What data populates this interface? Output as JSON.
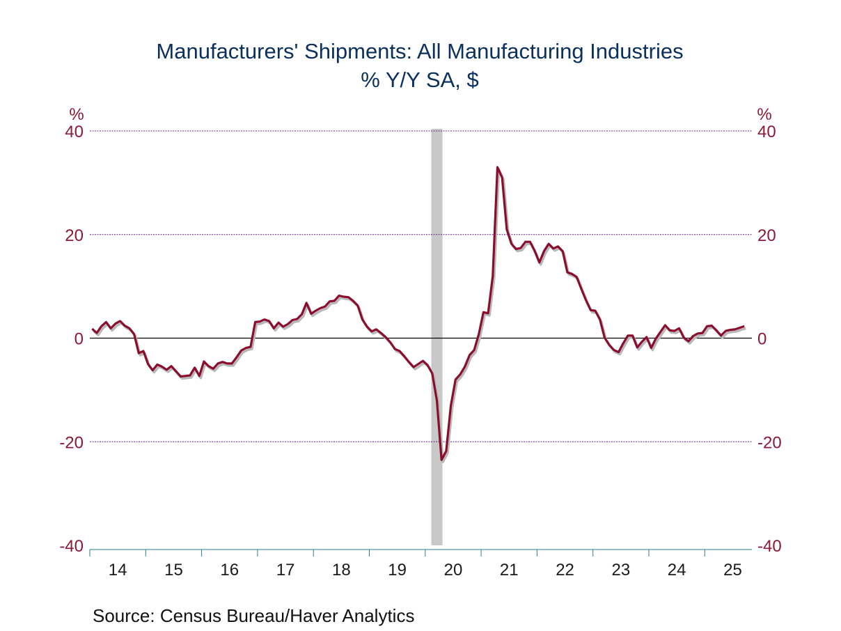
{
  "chart_data": {
    "type": "line",
    "title": "Manufacturers' Shipments: All Manufacturing Industries",
    "subtitle": "% Y/Y   SA, $",
    "ylabel_left": "%",
    "ylabel_right": "%",
    "ylim": [
      -40,
      40
    ],
    "yticks": [
      40,
      20,
      0,
      -20,
      -40
    ],
    "ytick_labels": [
      "40",
      "20",
      "0",
      "-20",
      "-40"
    ],
    "xlabel": "",
    "x_start": "2014-01",
    "x_end": "2025-09",
    "frequency": "monthly",
    "xtick_labels": [
      "14",
      "15",
      "16",
      "17",
      "18",
      "19",
      "20",
      "21",
      "22",
      "23",
      "24",
      "25"
    ],
    "grid": "horizontal dashed at ±20, ±40; solid zero line",
    "recession_shading": [
      {
        "start": "2020-02",
        "end": "2020-04"
      }
    ],
    "series": [
      {
        "name": "Manufacturers' Shipments % Y/Y",
        "color": "#8b0d2e",
        "values": [
          1.8,
          1.0,
          2.3,
          3.1,
          1.9,
          2.8,
          3.3,
          2.4,
          1.9,
          0.8,
          -2.9,
          -2.5,
          -5.0,
          -6.2,
          -5.1,
          -5.5,
          -6.1,
          -5.4,
          -6.4,
          -7.4,
          -7.3,
          -7.2,
          -5.7,
          -7.3,
          -4.5,
          -5.4,
          -5.9,
          -4.9,
          -4.6,
          -4.9,
          -4.9,
          -3.7,
          -2.4,
          -1.9,
          -1.7,
          3.1,
          3.2,
          3.6,
          3.3,
          1.9,
          3.0,
          2.2,
          2.7,
          3.5,
          3.7,
          4.6,
          6.8,
          4.7,
          5.3,
          5.8,
          6.1,
          7.1,
          7.2,
          8.2,
          8.0,
          7.9,
          7.2,
          6.3,
          3.6,
          2.2,
          1.3,
          1.7,
          1.0,
          0.2,
          -0.8,
          -2.1,
          -2.5,
          -3.5,
          -4.6,
          -5.6,
          -5.0,
          -4.4,
          -5.2,
          -6.8,
          -12.0,
          -23.5,
          -21.8,
          -13.0,
          -8.0,
          -7.0,
          -5.5,
          -3.3,
          -2.3,
          0.8,
          5.0,
          4.8,
          12.0,
          33.0,
          31.0,
          21.0,
          18.2,
          17.2,
          17.4,
          18.6,
          18.6,
          16.8,
          14.6,
          16.8,
          18.2,
          17.3,
          17.7,
          16.8,
          12.7,
          12.4,
          11.8,
          9.5,
          7.3,
          5.4,
          5.3,
          3.6,
          0.1,
          -1.3,
          -2.3,
          -2.7,
          -1.0,
          0.5,
          0.5,
          -1.8,
          -0.7,
          0.2,
          -1.9,
          -0.1,
          1.2,
          2.5,
          1.5,
          1.4,
          1.9,
          0.1,
          -0.6,
          0.4,
          0.9,
          1.0,
          2.3,
          2.4,
          1.5,
          0.5,
          1.4,
          1.6,
          1.7,
          2.0,
          2.3
        ]
      }
    ],
    "source": "Source:  Census Bureau/Haver Analytics"
  },
  "colors": {
    "title": "#0b3060",
    "axis_labels": "#8b1a3a",
    "line": "#8b0d2e",
    "shadow": "#b8b8b8",
    "grid": "#6a1f8a",
    "recession": "#c8c8c8",
    "xaxis": "#2a7f86"
  }
}
